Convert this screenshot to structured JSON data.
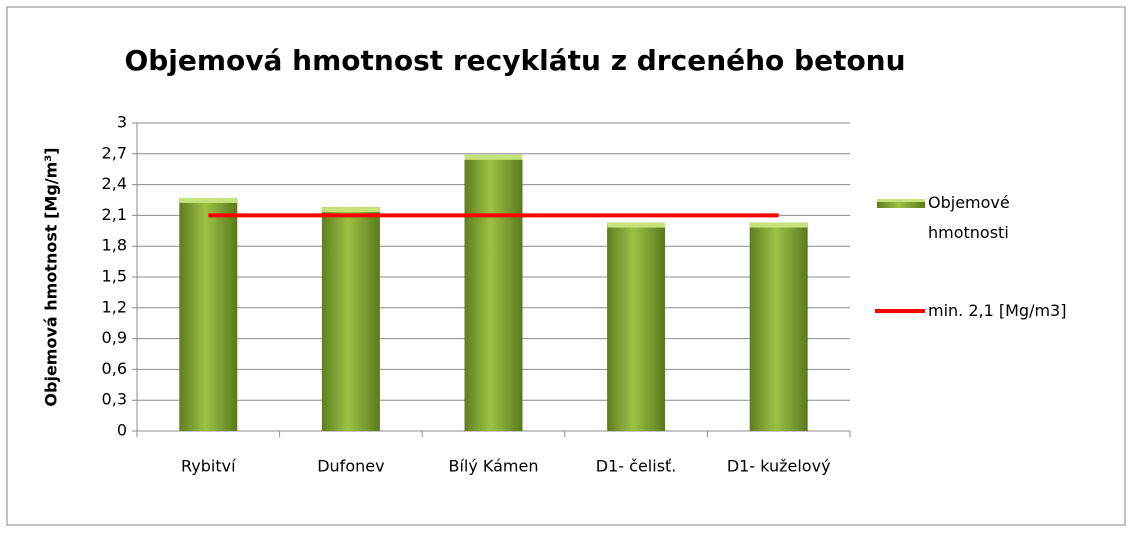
{
  "chart_data": {
    "type": "bar",
    "title": "Objemová hmotnost recyklátu z  drceného betonu",
    "y_label": "Objemová hmotnost  [Mg/m³]",
    "categories": [
      "Rybitví",
      "Dufonev",
      "Bílý Kámen",
      "D1- čelisť.",
      "D1- kuželový"
    ],
    "series": [
      {
        "name": "Objemové hmotnosti",
        "type": "bar",
        "color": "#8db33a",
        "values": [
          2.27,
          2.18,
          2.69,
          2.03,
          2.03
        ]
      },
      {
        "name": "min. 2,1 [Mg/m3]",
        "type": "line",
        "color": "#ff0000",
        "values": [
          2.1,
          2.1,
          2.1,
          2.1,
          2.1
        ]
      }
    ],
    "ylim": [
      0,
      3
    ],
    "yticks": [
      0,
      {
        "value": 0.3,
        "label": "0,3"
      },
      {
        "value": 0.6,
        "label": "0,6"
      },
      {
        "value": 0.9,
        "label": "0,9"
      },
      {
        "value": 1.2,
        "label": "1,2"
      },
      {
        "value": 1.5,
        "label": "1,5"
      },
      {
        "value": 1.8,
        "label": "1,8"
      },
      {
        "value": 2.1,
        "label": "2,1"
      },
      {
        "value": 2.4,
        "label": "2,4"
      },
      {
        "value": 2.7,
        "label": "2,7"
      },
      3
    ],
    "grid": true,
    "legend": "right"
  }
}
